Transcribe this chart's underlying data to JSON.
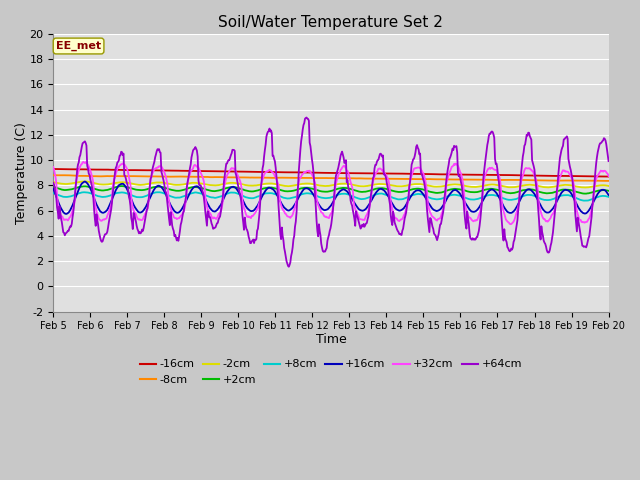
{
  "title": "Soil/Water Temperature Set 2",
  "xlabel": "Time",
  "ylabel": "Temperature (C)",
  "ylim": [
    -2,
    20
  ],
  "xlim": [
    0,
    15
  ],
  "bg_color": "#e0e0e0",
  "xtick_labels": [
    "Feb 5",
    "Feb 6",
    "Feb 7",
    "Feb 8",
    "Feb 9",
    "Feb 10",
    "Feb 11",
    "Feb 12",
    "Feb 13",
    "Feb 14",
    "Feb 15",
    "Feb 16",
    "Feb 17",
    "Feb 18",
    "Feb 19",
    "Feb 20"
  ],
  "annotation_text": "EE_met",
  "annotation_color": "#880000",
  "annotation_bg": "#ffffcc",
  "annotation_border": "#999900",
  "grid_color": "#ffffff",
  "series_colors": {
    "-16cm": "#cc0000",
    "-8cm": "#ff8800",
    "-2cm": "#dddd00",
    "+2cm": "#00bb00",
    "+8cm": "#00cccc",
    "+16cm": "#0000bb",
    "+32cm": "#ff44ff",
    "+64cm": "#9900cc"
  },
  "legend_order": [
    "-16cm",
    "-8cm",
    "-2cm",
    "+2cm",
    "+8cm",
    "+16cm",
    "+32cm",
    "+64cm"
  ]
}
